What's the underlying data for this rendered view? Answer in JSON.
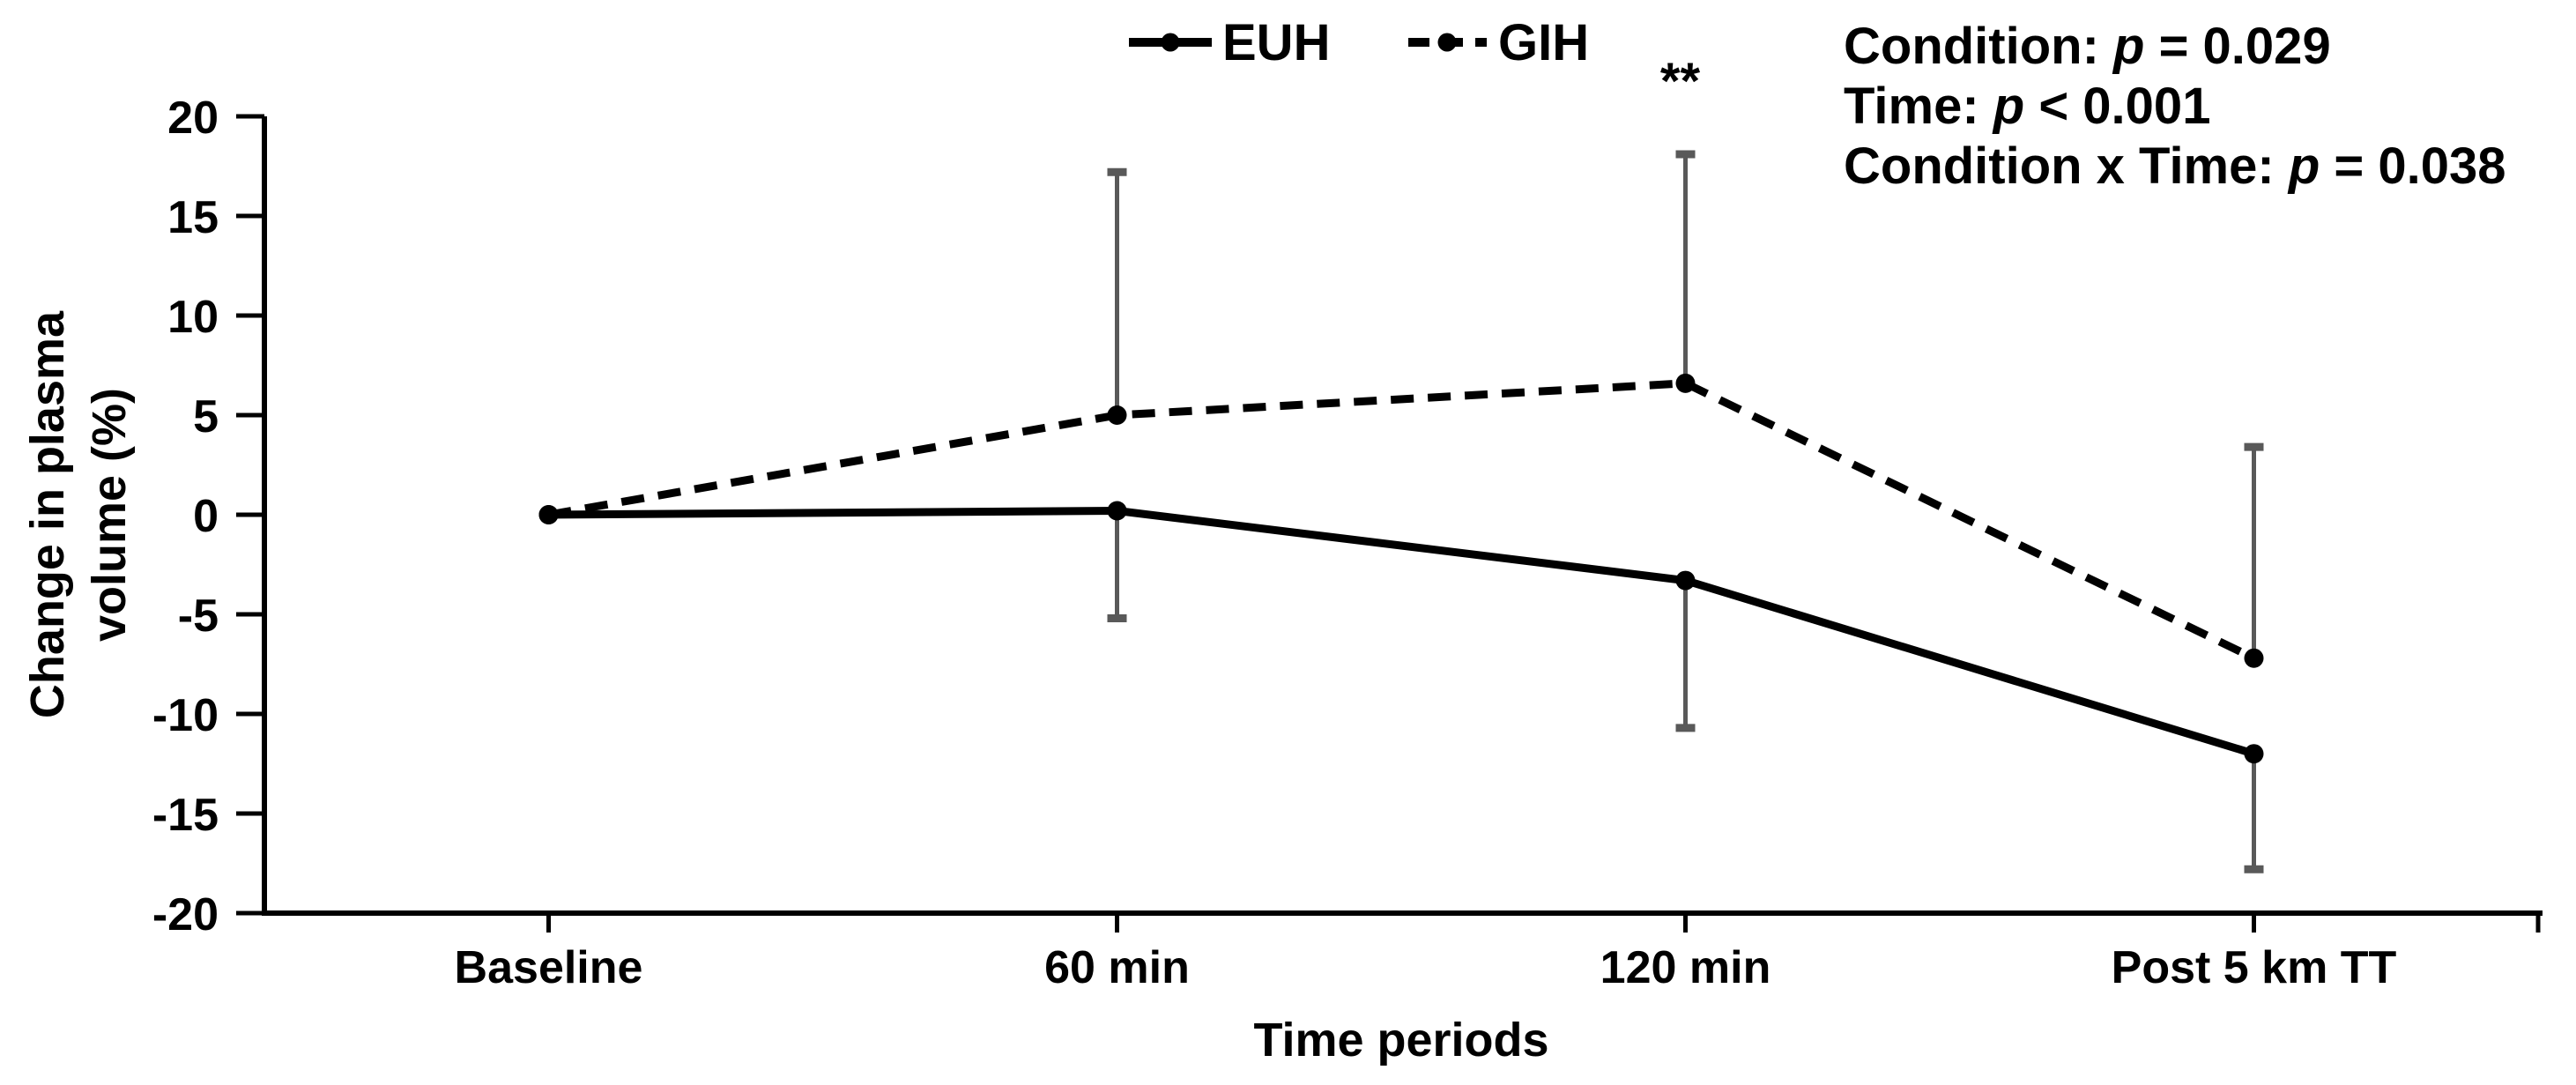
{
  "figure": {
    "background": "#ffffff"
  },
  "chart_data": {
    "type": "line",
    "title": "",
    "xlabel": "Time periods",
    "ylabel": "Change in plasma volume (%)",
    "ylabel_lines": [
      "Change in plasma",
      "volume (%)"
    ],
    "categories": [
      "Baseline",
      "60 min",
      "120 min",
      "Post 5 km TT"
    ],
    "ylim": [
      -20,
      20
    ],
    "yticks": [
      20,
      15,
      10,
      5,
      0,
      -5,
      -10,
      -15,
      -20
    ],
    "grid": "off",
    "legend_position": "top-center",
    "colors": {
      "series": "#000000",
      "error_bar": "#595959",
      "text": "#000000",
      "background": "#ffffff"
    },
    "series": [
      {
        "name": "EUH",
        "line_style": "solid",
        "marker": "circle",
        "color": "#000000",
        "values": [
          0.0,
          0.2,
          -3.3,
          -12.0
        ],
        "error_up": [
          0,
          0,
          0,
          0
        ],
        "error_down": [
          0,
          5.4,
          7.4,
          5.8
        ]
      },
      {
        "name": "GIH",
        "line_style": "dashed",
        "marker": "circle",
        "color": "#000000",
        "values": [
          0.0,
          5.0,
          6.6,
          -7.2
        ],
        "error_up": [
          0,
          12.2,
          11.5,
          10.6
        ],
        "error_down": [
          0,
          0,
          0,
          0
        ]
      }
    ],
    "significance": {
      "marker": "**",
      "category_index": 2,
      "category": "120 min"
    },
    "stats_annotations": [
      {
        "factor": "Condition",
        "symbol": "p",
        "relation": "=",
        "value": "0.029",
        "text": "Condition: p = 0.029"
      },
      {
        "factor": "Time",
        "symbol": "p",
        "relation": "<",
        "value": "0.001",
        "text": "Time: p < 0.001"
      },
      {
        "factor": "Condition x Time",
        "symbol": "p",
        "relation": "=",
        "value": "0.038",
        "text": "Condition x Time: p = 0.038"
      }
    ]
  }
}
